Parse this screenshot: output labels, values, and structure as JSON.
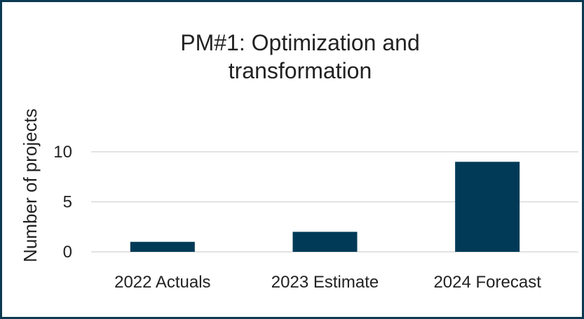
{
  "chart_data": {
    "type": "bar",
    "title": "PM#1: Optimization and transformation",
    "y_label": "Number of projects",
    "categories": [
      "2022 Actuals",
      "2023 Estimate",
      "2024 Forecast"
    ],
    "values": [
      1,
      2,
      9
    ],
    "color": "#003a57",
    "ylim": [
      0,
      10
    ],
    "yticks": [
      0,
      5,
      10
    ],
    "grid": true
  }
}
